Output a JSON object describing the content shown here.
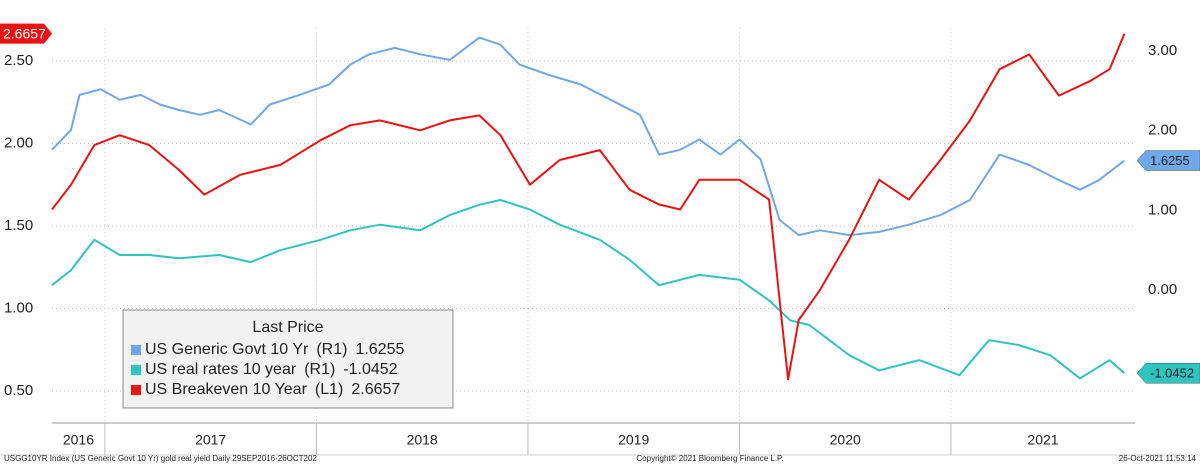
{
  "chart_data": {
    "type": "line",
    "legend_title": "Last Price",
    "x_labels": [
      "2016",
      "2017",
      "2018",
      "2019",
      "2020",
      "2021"
    ],
    "xlim": [
      2016.75,
      2021.87
    ],
    "xticks": [
      2017,
      2018,
      2019,
      2020,
      2021
    ],
    "ylim": [
      0.306,
      2.7
    ],
    "yticks": [
      {
        "value": 0.5,
        "label": "0.50"
      },
      {
        "value": 1,
        "label": "1.00"
      },
      {
        "value": 1.5,
        "label": "1.50"
      },
      {
        "value": 2,
        "label": "2.00"
      },
      {
        "value": 2.5,
        "label": "2.50"
      }
    ],
    "y2lim": [
      -1.67,
      3.29
    ],
    "y2ticks": [
      {
        "value": 0,
        "label": "0.00"
      },
      {
        "value": 1,
        "label": "1.00"
      },
      {
        "value": 2,
        "label": "2.00"
      },
      {
        "value": 3,
        "label": "3.00"
      }
    ],
    "grid": true,
    "series": [
      {
        "name": "US Generic Govt 10 Yr",
        "legend_axis": "(R1)",
        "axis": "y2",
        "color": "#6fa8e8",
        "x": [
          2016.75,
          2016.84,
          2016.88,
          2016.98,
          2017.07,
          2017.17,
          2017.26,
          2017.35,
          2017.45,
          2017.54,
          2017.69,
          2017.78,
          2017.92,
          2018.06,
          2018.16,
          2018.25,
          2018.37,
          2018.49,
          2018.63,
          2018.77,
          2018.87,
          2018.96,
          2019.1,
          2019.25,
          2019.39,
          2019.53,
          2019.62,
          2019.72,
          2019.81,
          2019.91,
          2020.0,
          2020.1,
          2020.19,
          2020.28,
          2020.38,
          2020.52,
          2020.66,
          2020.8,
          2020.95,
          2021.09,
          2021.23,
          2021.37,
          2021.51,
          2021.61,
          2021.7,
          2021.82
        ],
        "values": [
          1.76,
          2.01,
          2.45,
          2.52,
          2.39,
          2.45,
          2.33,
          2.26,
          2.2,
          2.26,
          2.08,
          2.33,
          2.45,
          2.58,
          2.83,
          2.96,
          3.04,
          2.96,
          2.89,
          3.17,
          3.08,
          2.83,
          2.7,
          2.58,
          2.39,
          2.2,
          1.7,
          1.76,
          1.89,
          1.7,
          1.89,
          1.64,
          0.88,
          0.69,
          0.75,
          0.69,
          0.73,
          0.82,
          0.94,
          1.13,
          1.7,
          1.57,
          1.38,
          1.26,
          1.38,
          1.6255
        ]
      },
      {
        "name": "US real rates 10 year",
        "legend_axis": "(R1)",
        "axis": "y2",
        "color": "#2ec4c0",
        "x": [
          2016.75,
          2016.84,
          2016.95,
          2017.07,
          2017.21,
          2017.35,
          2017.54,
          2017.69,
          2017.83,
          2018.02,
          2018.16,
          2018.3,
          2018.49,
          2018.63,
          2018.77,
          2018.87,
          2019.01,
          2019.15,
          2019.34,
          2019.48,
          2019.62,
          2019.81,
          2020.0,
          2020.14,
          2020.24,
          2020.33,
          2020.52,
          2020.66,
          2020.85,
          2021.04,
          2021.18,
          2021.32,
          2021.47,
          2021.61,
          2021.75,
          2021.82
        ],
        "values": [
          0.06,
          0.25,
          0.63,
          0.44,
          0.44,
          0.4,
          0.44,
          0.35,
          0.5,
          0.63,
          0.75,
          0.82,
          0.75,
          0.94,
          1.07,
          1.13,
          1.01,
          0.82,
          0.63,
          0.38,
          0.06,
          0.19,
          0.13,
          -0.13,
          -0.38,
          -0.44,
          -0.82,
          -1.01,
          -0.88,
          -1.07,
          -0.63,
          -0.69,
          -0.82,
          -1.11,
          -0.88,
          -1.0452
        ]
      },
      {
        "name": "US Breakeven 10 Year",
        "legend_axis": "(L1)",
        "axis": "y",
        "color": "#ee1111",
        "x": [
          2016.75,
          2016.84,
          2016.95,
          2017.07,
          2017.21,
          2017.35,
          2017.47,
          2017.64,
          2017.83,
          2018.02,
          2018.16,
          2018.3,
          2018.49,
          2018.63,
          2018.77,
          2018.87,
          2019.01,
          2019.15,
          2019.34,
          2019.48,
          2019.62,
          2019.72,
          2019.81,
          2020.0,
          2020.14,
          2020.19,
          2020.23,
          2020.28,
          2020.38,
          2020.52,
          2020.66,
          2020.8,
          2020.95,
          2021.09,
          2021.23,
          2021.37,
          2021.51,
          2021.66,
          2021.75,
          2021.82
        ],
        "values": [
          1.6,
          1.75,
          1.99,
          2.05,
          1.99,
          1.84,
          1.69,
          1.81,
          1.87,
          2.02,
          2.11,
          2.14,
          2.08,
          2.14,
          2.17,
          2.05,
          1.75,
          1.9,
          1.96,
          1.72,
          1.63,
          1.6,
          1.78,
          1.78,
          1.66,
          1.05,
          0.57,
          0.93,
          1.11,
          1.42,
          1.78,
          1.66,
          1.9,
          2.14,
          2.45,
          2.54,
          2.29,
          2.38,
          2.45,
          2.6657
        ]
      }
    ]
  },
  "footer": {
    "left": "USGG10YR Index (US Generic Govt 10 Yr) gold real yield  Daily 29SEP2016-26OCT202",
    "center": "Copyright© 2021 Bloomberg Finance L.P.",
    "right": "26-Oct-2021 11:53:14"
  }
}
